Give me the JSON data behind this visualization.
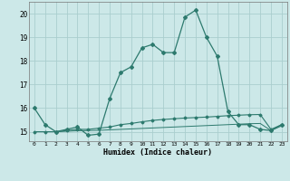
{
  "xlabel": "Humidex (Indice chaleur)",
  "x": [
    0,
    1,
    2,
    3,
    4,
    5,
    6,
    7,
    8,
    9,
    10,
    11,
    12,
    13,
    14,
    15,
    16,
    17,
    18,
    19,
    20,
    21,
    22,
    23
  ],
  "line1": [
    16.0,
    15.3,
    15.0,
    15.1,
    15.2,
    14.85,
    14.9,
    16.4,
    17.5,
    17.75,
    18.55,
    18.7,
    18.35,
    18.35,
    19.85,
    20.15,
    19.0,
    18.2,
    15.85,
    15.3,
    15.3,
    15.1,
    15.05,
    15.3
  ],
  "line2": [
    15.0,
    15.0,
    15.0,
    15.05,
    15.1,
    15.1,
    15.15,
    15.2,
    15.3,
    15.35,
    15.42,
    15.48,
    15.52,
    15.55,
    15.58,
    15.6,
    15.62,
    15.65,
    15.68,
    15.7,
    15.72,
    15.73,
    15.1,
    15.3
  ],
  "line3": [
    15.0,
    15.0,
    15.0,
    15.02,
    15.04,
    15.05,
    15.06,
    15.08,
    15.1,
    15.12,
    15.14,
    15.16,
    15.18,
    15.2,
    15.22,
    15.24,
    15.26,
    15.28,
    15.3,
    15.32,
    15.34,
    15.35,
    15.05,
    15.25
  ],
  "line_color": "#2d7a6e",
  "bg_color": "#cce8e8",
  "grid_color": "#aacece",
  "ylim": [
    14.6,
    20.5
  ],
  "yticks": [
    15,
    16,
    17,
    18,
    19,
    20
  ],
  "xlim": [
    -0.5,
    23.5
  ]
}
